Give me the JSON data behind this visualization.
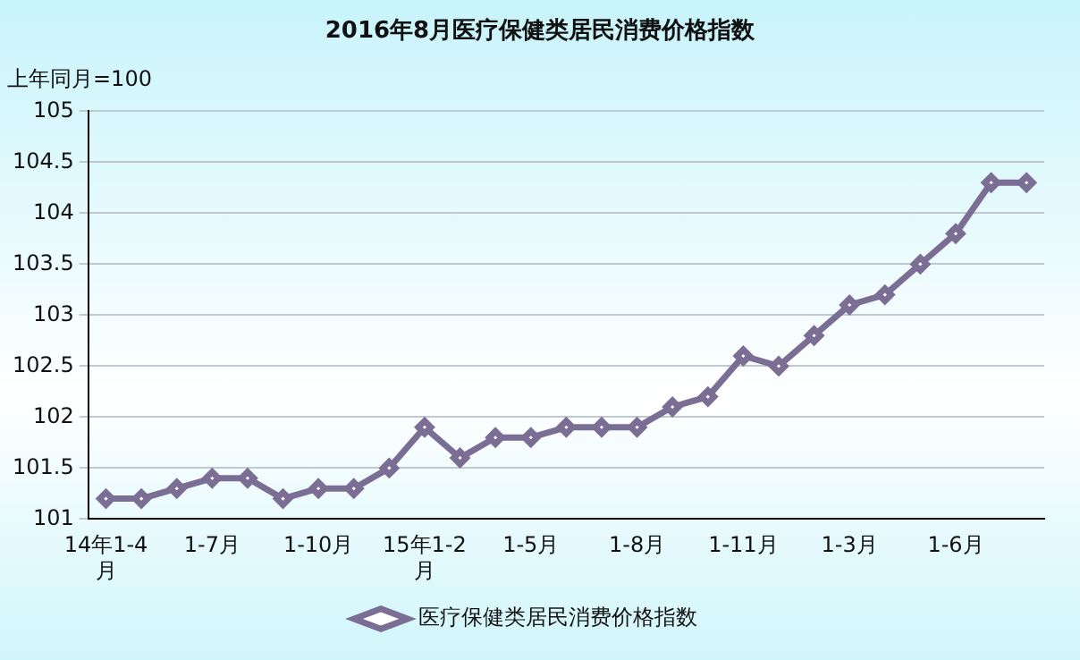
{
  "chart_data": {
    "type": "line",
    "title": "2016年8月医疗保健类居民消费价格指数",
    "ylabel": "上年同月=100",
    "categories": [
      "14年1-4月",
      null,
      null,
      "1-7月",
      null,
      null,
      "1-10月",
      null,
      null,
      "15年1-2月",
      null,
      null,
      "1-5月",
      null,
      null,
      "1-8月",
      null,
      null,
      "1-11月",
      null,
      null,
      "1-3月",
      null,
      null,
      "1-6月",
      null,
      null
    ],
    "series": [
      {
        "name": "医疗保健类居民消费价格指数",
        "color": "#7b6e94",
        "values": [
          101.2,
          101.2,
          101.3,
          101.4,
          101.4,
          101.2,
          101.3,
          101.3,
          101.5,
          101.9,
          101.6,
          101.8,
          101.8,
          101.9,
          101.9,
          101.9,
          102.1,
          102.2,
          102.6,
          102.5,
          102.8,
          103.1,
          103.2,
          103.5,
          103.8,
          104.3,
          104.3
        ]
      }
    ],
    "ylim": [
      101,
      105
    ],
    "yticks": [
      101,
      101.5,
      102,
      102.5,
      103,
      103.5,
      104,
      104.5,
      105
    ],
    "grid": "y",
    "legend": "bottom",
    "marker": "diamond",
    "line_style": "solid"
  }
}
